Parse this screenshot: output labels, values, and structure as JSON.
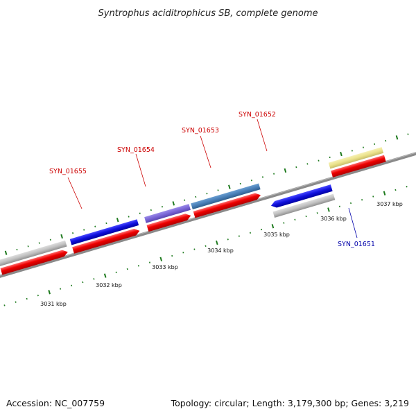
{
  "title": "Syntrophus aciditrophicus SB, complete genome",
  "footer": {
    "accession": "Accession: NC_007759",
    "summary": "Topology: circular; Length: 3,179,300 bp; Genes: 3,219"
  },
  "scale": {
    "tick_labels": [
      "3031 kbp",
      "3032 kbp",
      "3033 kbp",
      "3034 kbp",
      "3035 kbp",
      "3036 kbp",
      "3037 kbp"
    ]
  },
  "gene_labels": [
    {
      "text": "SYN_01655",
      "color": "#cc0000"
    },
    {
      "text": "SYN_01654",
      "color": "#cc0000"
    },
    {
      "text": "SYN_01653",
      "color": "#cc0000"
    },
    {
      "text": "SYN_01652",
      "color": "#cc0000"
    },
    {
      "text": "SYN_01651",
      "color": "#0000aa"
    }
  ],
  "colors": {
    "backbone": "#8a8a8a",
    "cds": "#ee0000",
    "blue_feature": "#1010dd",
    "gray_feature": "#c0c0c0",
    "purple_feature": "#7a66d6",
    "steelblue_feature": "#4a80b8",
    "khaki_feature": "#ece38c",
    "pink_feature": "#f0209a",
    "tick": "#1e7a1e"
  }
}
